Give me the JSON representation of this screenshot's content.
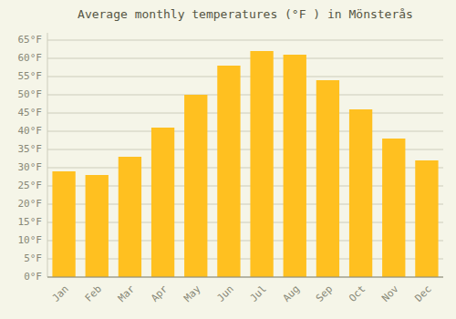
{
  "chart_data": {
    "type": "bar",
    "title": "Average monthly temperatures (°F ) in Mönsterås",
    "categories": [
      "Jan",
      "Feb",
      "Mar",
      "Apr",
      "May",
      "Jun",
      "Jul",
      "Aug",
      "Sep",
      "Oct",
      "Nov",
      "Dec"
    ],
    "values": [
      29,
      28,
      33,
      41,
      50,
      58,
      62,
      61,
      54,
      46,
      38,
      32
    ],
    "color": "#FFC020",
    "ylim": [
      0,
      67
    ],
    "yticks": [
      {
        "value": 0,
        "label": "0°F"
      },
      {
        "value": 5,
        "label": "5°F"
      },
      {
        "value": 10,
        "label": "10°F"
      },
      {
        "value": 15,
        "label": "15°F"
      },
      {
        "value": 20,
        "label": "20°F"
      },
      {
        "value": 25,
        "label": "25°F"
      },
      {
        "value": 30,
        "label": "30°F"
      },
      {
        "value": 35,
        "label": "35°F"
      },
      {
        "value": 40,
        "label": "40°F"
      },
      {
        "value": 45,
        "label": "45°F"
      },
      {
        "value": 50,
        "label": "50°F"
      },
      {
        "value": 55,
        "label": "55°F"
      },
      {
        "value": 60,
        "label": "60°F"
      },
      {
        "value": 65,
        "label": "65°F"
      }
    ],
    "grid": true
  }
}
